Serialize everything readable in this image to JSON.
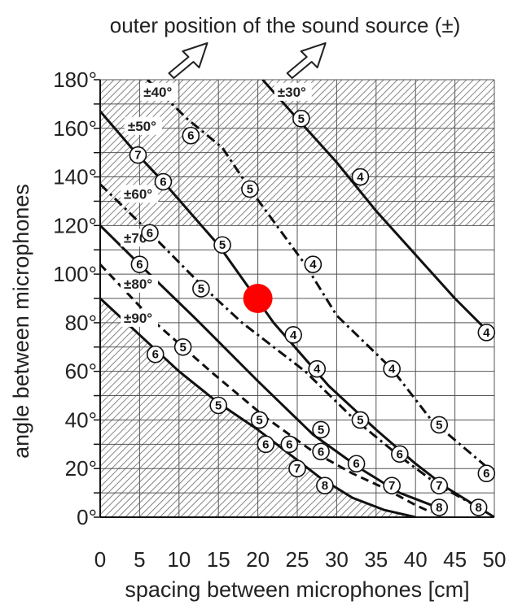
{
  "chart_data": {
    "type": "line",
    "title": "outer position of the sound source (±)",
    "xlabel": "spacing between microphones [cm]",
    "ylabel": "angle between microphones",
    "xlim": [
      0,
      50
    ],
    "ylim": [
      0,
      180
    ],
    "x_ticks": [
      "0",
      "5",
      "10",
      "15",
      "20",
      "25",
      "30",
      "35",
      "40",
      "45",
      "50"
    ],
    "y_ticks": [
      "0°",
      "20°",
      "40°",
      "60°",
      "80°",
      "100°",
      "120°",
      "140°",
      "160°",
      "180°"
    ],
    "grid": true,
    "series": [
      {
        "name": "±30°",
        "style": "solid",
        "points": [
          [
            20.6,
            180
          ],
          [
            25,
            164
          ],
          [
            30,
            146
          ],
          [
            35,
            126
          ],
          [
            40,
            108
          ],
          [
            45,
            90
          ],
          [
            49,
            77
          ]
        ]
      },
      {
        "name": "±40°",
        "style": "dash-dot",
        "points": [
          [
            6,
            180
          ],
          [
            11,
            164
          ],
          [
            15.5,
            152
          ],
          [
            19,
            135
          ],
          [
            26,
            104
          ],
          [
            30,
            83
          ],
          [
            37,
            61
          ],
          [
            42,
            40
          ],
          [
            50,
            18
          ]
        ]
      },
      {
        "name": "±50°",
        "style": "solid",
        "points": [
          [
            0,
            167
          ],
          [
            4.5,
            150
          ],
          [
            8,
            138
          ],
          [
            15,
            112
          ],
          [
            22,
            80
          ],
          [
            29,
            54
          ],
          [
            35,
            36
          ],
          [
            40,
            22
          ],
          [
            44,
            12
          ],
          [
            50,
            0
          ]
        ]
      },
      {
        "name": "±60°",
        "style": "dash-dot",
        "points": [
          [
            0,
            137
          ],
          [
            6,
            118
          ],
          [
            13,
            95
          ],
          [
            18,
            80
          ],
          [
            26,
            60
          ],
          [
            32,
            41
          ],
          [
            38,
            25
          ],
          [
            43,
            13
          ],
          [
            48,
            4
          ]
        ]
      },
      {
        "name": "±70°",
        "style": "solid",
        "points": [
          [
            0,
            120
          ],
          [
            5,
            104
          ],
          [
            12,
            82
          ],
          [
            20,
            56
          ],
          [
            27,
            34
          ],
          [
            33,
            20
          ],
          [
            38,
            10
          ],
          [
            42,
            5
          ]
        ]
      },
      {
        "name": "±80°",
        "style": "dashed",
        "points": [
          [
            0,
            104
          ],
          [
            7,
            80
          ],
          [
            14,
            60
          ],
          [
            21,
            41
          ],
          [
            27,
            27
          ],
          [
            32,
            18
          ],
          [
            36,
            12
          ],
          [
            40,
            5
          ],
          [
            42,
            2
          ]
        ]
      },
      {
        "name": "±90°",
        "style": "solid",
        "points": [
          [
            0,
            90
          ],
          [
            5,
            75
          ],
          [
            10,
            60
          ],
          [
            15,
            47
          ],
          [
            20,
            36
          ],
          [
            24,
            26
          ],
          [
            28,
            16
          ],
          [
            32,
            8
          ],
          [
            36,
            3
          ],
          [
            40,
            0
          ]
        ]
      }
    ],
    "marker_labels": [
      {
        "text": "5",
        "x": 25.5,
        "y": 164
      },
      {
        "text": "4",
        "x": 33,
        "y": 140
      },
      {
        "text": "4",
        "x": 49,
        "y": 76
      },
      {
        "text": "6",
        "x": 11.5,
        "y": 157
      },
      {
        "text": "5",
        "x": 19,
        "y": 135
      },
      {
        "text": "4",
        "x": 27,
        "y": 104
      },
      {
        "text": "4",
        "x": 37,
        "y": 61
      },
      {
        "text": "5",
        "x": 43,
        "y": 38
      },
      {
        "text": "6",
        "x": 49,
        "y": 18
      },
      {
        "text": "7",
        "x": 4.8,
        "y": 149
      },
      {
        "text": "6",
        "x": 8,
        "y": 138
      },
      {
        "text": "5",
        "x": 15.5,
        "y": 112
      },
      {
        "text": "4",
        "x": 24.5,
        "y": 75
      },
      {
        "text": "4",
        "x": 27.5,
        "y": 61
      },
      {
        "text": "5",
        "x": 33,
        "y": 40
      },
      {
        "text": "6",
        "x": 38,
        "y": 26
      },
      {
        "text": "7",
        "x": 43,
        "y": 13
      },
      {
        "text": "8",
        "x": 48,
        "y": 4
      },
      {
        "text": "6",
        "x": 6.3,
        "y": 117
      },
      {
        "text": "5",
        "x": 12.8,
        "y": 94
      },
      {
        "text": "5",
        "x": 28,
        "y": 36
      },
      {
        "text": "6",
        "x": 32.5,
        "y": 22
      },
      {
        "text": "7",
        "x": 37,
        "y": 13
      },
      {
        "text": "8",
        "x": 43,
        "y": 4
      },
      {
        "text": "6",
        "x": 5,
        "y": 104
      },
      {
        "text": "5",
        "x": 10.5,
        "y": 70
      },
      {
        "text": "5",
        "x": 15,
        "y": 46
      },
      {
        "text": "5",
        "x": 20.2,
        "y": 40
      },
      {
        "text": "6",
        "x": 21,
        "y": 30
      },
      {
        "text": "6",
        "x": 24,
        "y": 30
      },
      {
        "text": "6",
        "x": 28,
        "y": 27
      },
      {
        "text": "7",
        "x": 25,
        "y": 20
      },
      {
        "text": "8",
        "x": 28.5,
        "y": 13
      },
      {
        "text": "6",
        "x": 7,
        "y": 67
      }
    ],
    "curve_labels": [
      {
        "text": "±30°",
        "x": 22.5,
        "y": 173
      },
      {
        "text": "±40°",
        "x": 5.5,
        "y": 173
      },
      {
        "text": "±50°",
        "x": 3.5,
        "y": 159
      },
      {
        "text": "±60°",
        "x": 3,
        "y": 131
      },
      {
        "text": "±70°",
        "x": 3,
        "y": 113
      },
      {
        "text": "±80°",
        "x": 3,
        "y": 94
      },
      {
        "text": "±90°",
        "x": 3,
        "y": 80
      }
    ],
    "highlight_point": {
      "x": 20,
      "y": 90,
      "color": "#ff0000"
    },
    "hatched_regions": [
      {
        "description": "angle above 120°"
      },
      {
        "description": "below ±90° curve"
      }
    ],
    "arrows": [
      {
        "at_x": 11
      },
      {
        "at_x": 26
      }
    ]
  }
}
